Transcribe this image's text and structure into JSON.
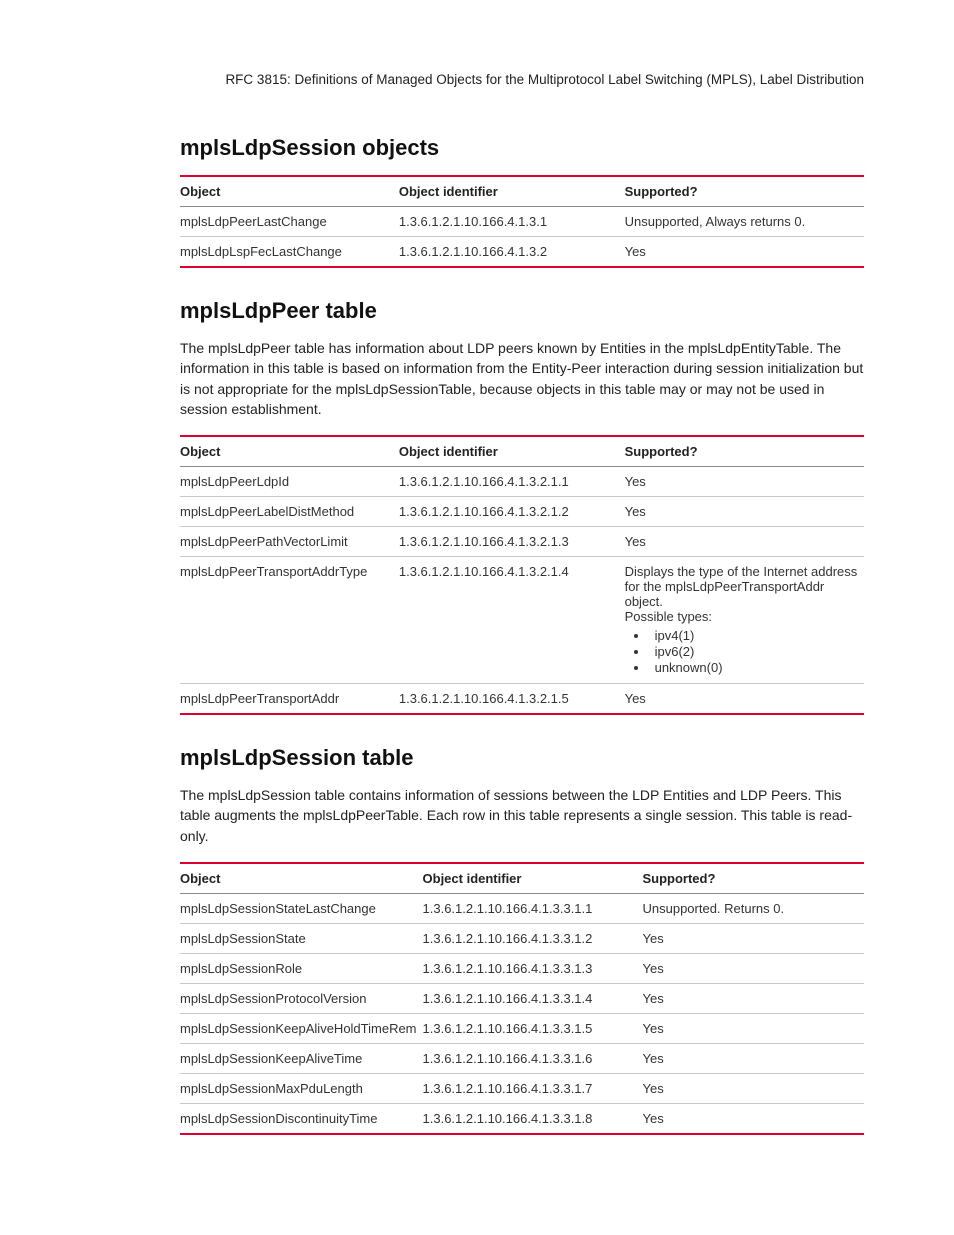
{
  "header": "RFC 3815: Definitions of Managed Objects for the Multiprotocol Label Switching (MPLS), Label Distribution",
  "sections": [
    {
      "title": "mplsLdpSession objects",
      "paragraph": null,
      "columns": [
        "Object",
        "Object identifier",
        "Supported?"
      ],
      "rows": [
        {
          "c0": "mplsLdpPeerLastChange",
          "c1": "1.3.6.1.2.1.10.166.4.1.3.1",
          "c2": "Unsupported, Always returns 0."
        },
        {
          "c0": "mplsLdpLspFecLastChange",
          "c1": "1.3.6.1.2.1.10.166.4.1.3.2",
          "c2": "Yes"
        }
      ]
    },
    {
      "title": "mplsLdpPeer table",
      "paragraph": "The mplsLdpPeer table has information about LDP peers known by Entities in the mplsLdpEntityTable. The information in this table is based on information from the Entity-Peer interaction during session initialization but is not appropriate for the mplsLdpSessionTable, because objects in this table may or may not be used in session establishment.",
      "columns": [
        "Object",
        "Object identifier",
        "Supported?"
      ],
      "rows": [
        {
          "c0": "mplsLdpPeerLdpId",
          "c1": "1.3.6.1.2.1.10.166.4.1.3.2.1.1",
          "c2": "Yes"
        },
        {
          "c0": "mplsLdpPeerLabelDistMethod",
          "c1": "1.3.6.1.2.1.10.166.4.1.3.2.1.2",
          "c2": "Yes"
        },
        {
          "c0": "mplsLdpPeerPathVectorLimit",
          "c1": "1.3.6.1.2.1.10.166.4.1.3.2.1.3",
          "c2": "Yes"
        },
        {
          "c0": "mplsLdpPeerTransportAddrType",
          "c1": "1.3.6.1.2.1.10.166.4.1.3.2.1.4",
          "c2_lines": [
            "Displays the type of the Internet address for the mplsLdpPeerTransportAddr object.",
            "Possible types:"
          ],
          "c2_list": [
            "ipv4(1)",
            "ipv6(2)",
            "unknown(0)"
          ]
        },
        {
          "c0": "mplsLdpPeerTransportAddr",
          "c1": "1.3.6.1.2.1.10.166.4.1.3.2.1.5",
          "c2": "Yes"
        }
      ]
    },
    {
      "title": "mplsLdpSession table",
      "paragraph": "The mplsLdpSession table contains information of sessions between the LDP Entities and LDP Peers. This table augments the mplsLdpPeerTable. Each row in this table represents a single session. This table is read-only.",
      "columns": [
        "Object",
        "Object identifier",
        "Supported?"
      ],
      "rows": [
        {
          "c0": "mplsLdpSessionStateLastChange",
          "c1": "1.3.6.1.2.1.10.166.4.1.3.3.1.1",
          "c2": "Unsupported. Returns 0."
        },
        {
          "c0": "mplsLdpSessionState",
          "c1": "1.3.6.1.2.1.10.166.4.1.3.3.1.2",
          "c2": "Yes"
        },
        {
          "c0": "mplsLdpSessionRole",
          "c1": "1.3.6.1.2.1.10.166.4.1.3.3.1.3",
          "c2": "Yes"
        },
        {
          "c0": "mplsLdpSessionProtocolVersion",
          "c1": "1.3.6.1.2.1.10.166.4.1.3.3.1.4",
          "c2": "Yes"
        },
        {
          "c0": "mplsLdpSessionKeepAliveHoldTimeRem",
          "c1": "1.3.6.1.2.1.10.166.4.1.3.3.1.5",
          "c2": "Yes"
        },
        {
          "c0": "mplsLdpSessionKeepAliveTime",
          "c1": "1.3.6.1.2.1.10.166.4.1.3.3.1.6",
          "c2": "Yes"
        },
        {
          "c0": "mplsLdpSessionMaxPduLength",
          "c1": "1.3.6.1.2.1.10.166.4.1.3.3.1.7",
          "c2": "Yes"
        },
        {
          "c0": "mplsLdpSessionDiscontinuityTime",
          "c1": "1.3.6.1.2.1.10.166.4.1.3.3.1.8",
          "c2": "Yes"
        }
      ]
    }
  ]
}
